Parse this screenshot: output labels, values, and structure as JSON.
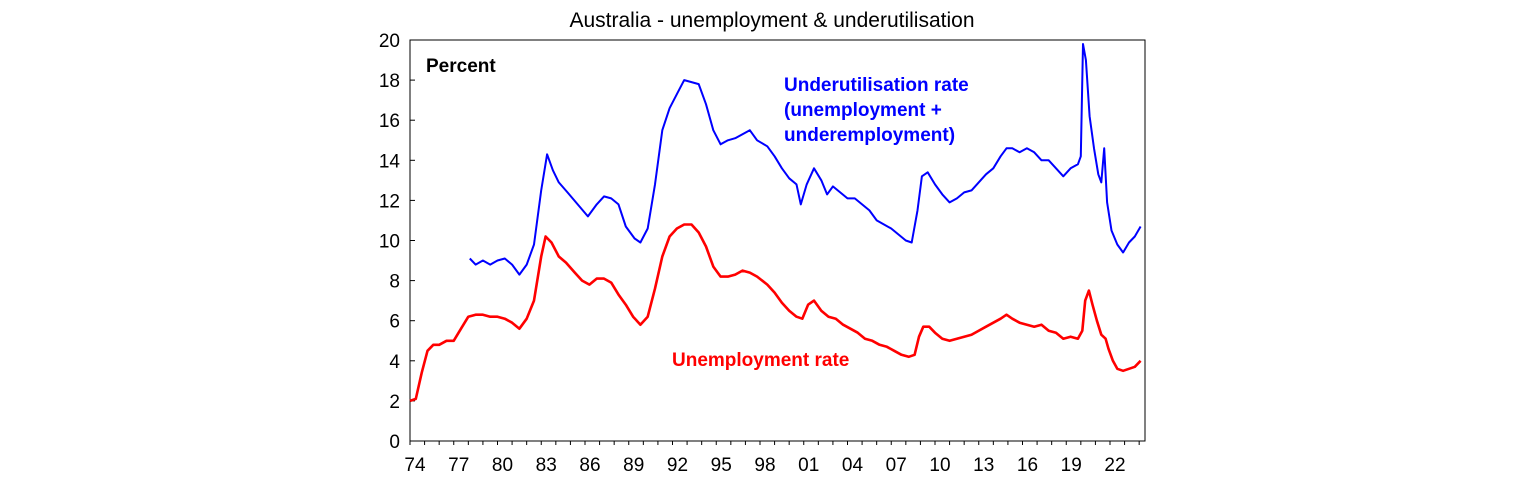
{
  "chart_data": {
    "type": "line",
    "title": "Australia - unemployment & underutilisation",
    "ylabel": "Percent",
    "xlabel": "",
    "ylim": [
      0,
      20
    ],
    "xlim": [
      1974,
      2024.4
    ],
    "yticks": [
      0,
      2,
      4,
      6,
      8,
      10,
      12,
      14,
      16,
      18,
      20
    ],
    "xtick_labels": [
      "74",
      "77",
      "80",
      "83",
      "86",
      "89",
      "92",
      "95",
      "98",
      "01",
      "04",
      "07",
      "10",
      "13",
      "16",
      "19",
      "22"
    ],
    "xtick_years": [
      1974,
      1977,
      1980,
      1983,
      1986,
      1989,
      1992,
      1995,
      1998,
      2001,
      2004,
      2007,
      2010,
      2013,
      2016,
      2019,
      2022
    ],
    "grid": false,
    "legend": "inline annotations",
    "series": [
      {
        "name": "Underutilisation rate (unemployment + underemployment)",
        "color": "#0000ff",
        "annotation_lines": [
          "Underutilisation rate",
          "(unemployment +",
          "underemployment)"
        ],
        "points": [
          [
            1978.1,
            9.1
          ],
          [
            1978.5,
            8.8
          ],
          [
            1979.0,
            9.0
          ],
          [
            1979.5,
            8.8
          ],
          [
            1980.0,
            9.0
          ],
          [
            1980.5,
            9.1
          ],
          [
            1981.0,
            8.8
          ],
          [
            1981.5,
            8.3
          ],
          [
            1982.0,
            8.8
          ],
          [
            1982.5,
            9.8
          ],
          [
            1983.0,
            12.5
          ],
          [
            1983.4,
            14.3
          ],
          [
            1983.8,
            13.5
          ],
          [
            1984.2,
            12.9
          ],
          [
            1984.8,
            12.4
          ],
          [
            1985.5,
            11.8
          ],
          [
            1986.2,
            11.2
          ],
          [
            1986.8,
            11.8
          ],
          [
            1987.3,
            12.2
          ],
          [
            1987.8,
            12.1
          ],
          [
            1988.3,
            11.8
          ],
          [
            1988.8,
            10.7
          ],
          [
            1989.4,
            10.1
          ],
          [
            1989.8,
            9.9
          ],
          [
            1990.3,
            10.6
          ],
          [
            1990.8,
            12.8
          ],
          [
            1991.3,
            15.5
          ],
          [
            1991.8,
            16.6
          ],
          [
            1992.3,
            17.3
          ],
          [
            1992.8,
            18.0
          ],
          [
            1993.3,
            17.9
          ],
          [
            1993.8,
            17.8
          ],
          [
            1994.3,
            16.8
          ],
          [
            1994.8,
            15.5
          ],
          [
            1995.3,
            14.8
          ],
          [
            1995.8,
            15.0
          ],
          [
            1996.3,
            15.1
          ],
          [
            1996.8,
            15.3
          ],
          [
            1997.3,
            15.5
          ],
          [
            1997.8,
            15.0
          ],
          [
            1998.5,
            14.7
          ],
          [
            1999.0,
            14.2
          ],
          [
            1999.5,
            13.6
          ],
          [
            2000.0,
            13.1
          ],
          [
            2000.5,
            12.8
          ],
          [
            2000.8,
            11.8
          ],
          [
            2001.2,
            12.8
          ],
          [
            2001.7,
            13.6
          ],
          [
            2002.2,
            13.0
          ],
          [
            2002.6,
            12.3
          ],
          [
            2003.0,
            12.7
          ],
          [
            2003.5,
            12.4
          ],
          [
            2004.0,
            12.1
          ],
          [
            2004.5,
            12.1
          ],
          [
            2005.0,
            11.8
          ],
          [
            2005.5,
            11.5
          ],
          [
            2006.0,
            11.0
          ],
          [
            2006.5,
            10.8
          ],
          [
            2007.0,
            10.6
          ],
          [
            2007.5,
            10.3
          ],
          [
            2008.0,
            10.0
          ],
          [
            2008.4,
            9.9
          ],
          [
            2008.8,
            11.5
          ],
          [
            2009.1,
            13.2
          ],
          [
            2009.5,
            13.4
          ],
          [
            2010.0,
            12.8
          ],
          [
            2010.5,
            12.3
          ],
          [
            2011.0,
            11.9
          ],
          [
            2011.5,
            12.1
          ],
          [
            2012.0,
            12.4
          ],
          [
            2012.5,
            12.5
          ],
          [
            2013.0,
            12.9
          ],
          [
            2013.5,
            13.3
          ],
          [
            2014.0,
            13.6
          ],
          [
            2014.5,
            14.2
          ],
          [
            2014.9,
            14.6
          ],
          [
            2015.3,
            14.6
          ],
          [
            2015.8,
            14.4
          ],
          [
            2016.3,
            14.6
          ],
          [
            2016.8,
            14.4
          ],
          [
            2017.3,
            14.0
          ],
          [
            2017.8,
            14.0
          ],
          [
            2018.3,
            13.6
          ],
          [
            2018.8,
            13.2
          ],
          [
            2019.3,
            13.6
          ],
          [
            2019.8,
            13.8
          ],
          [
            2020.0,
            14.2
          ],
          [
            2020.15,
            19.8
          ],
          [
            2020.35,
            19.0
          ],
          [
            2020.6,
            16.2
          ],
          [
            2020.9,
            14.6
          ],
          [
            2021.2,
            13.3
          ],
          [
            2021.4,
            12.9
          ],
          [
            2021.6,
            14.6
          ],
          [
            2021.8,
            11.9
          ],
          [
            2022.1,
            10.5
          ],
          [
            2022.5,
            9.8
          ],
          [
            2022.9,
            9.4
          ],
          [
            2023.3,
            9.9
          ],
          [
            2023.7,
            10.2
          ],
          [
            2024.1,
            10.7
          ]
        ]
      },
      {
        "name": "Unemployment rate",
        "color": "#ff0000",
        "annotation_lines": [
          "Unemployment rate"
        ],
        "points": [
          [
            1974.0,
            2.0
          ],
          [
            1974.4,
            2.1
          ],
          [
            1974.8,
            3.4
          ],
          [
            1975.2,
            4.5
          ],
          [
            1975.6,
            4.8
          ],
          [
            1976.0,
            4.8
          ],
          [
            1976.5,
            5.0
          ],
          [
            1977.0,
            5.0
          ],
          [
            1977.5,
            5.6
          ],
          [
            1978.0,
            6.2
          ],
          [
            1978.5,
            6.3
          ],
          [
            1979.0,
            6.3
          ],
          [
            1979.5,
            6.2
          ],
          [
            1980.0,
            6.2
          ],
          [
            1980.5,
            6.1
          ],
          [
            1981.0,
            5.9
          ],
          [
            1981.5,
            5.6
          ],
          [
            1982.0,
            6.1
          ],
          [
            1982.5,
            7.0
          ],
          [
            1983.0,
            9.2
          ],
          [
            1983.3,
            10.2
          ],
          [
            1983.7,
            9.9
          ],
          [
            1984.2,
            9.2
          ],
          [
            1984.7,
            8.9
          ],
          [
            1985.3,
            8.4
          ],
          [
            1985.8,
            8.0
          ],
          [
            1986.3,
            7.8
          ],
          [
            1986.8,
            8.1
          ],
          [
            1987.3,
            8.1
          ],
          [
            1987.8,
            7.9
          ],
          [
            1988.3,
            7.3
          ],
          [
            1988.8,
            6.8
          ],
          [
            1989.3,
            6.2
          ],
          [
            1989.8,
            5.8
          ],
          [
            1990.3,
            6.2
          ],
          [
            1990.8,
            7.6
          ],
          [
            1991.3,
            9.2
          ],
          [
            1991.8,
            10.2
          ],
          [
            1992.3,
            10.6
          ],
          [
            1992.8,
            10.8
          ],
          [
            1993.3,
            10.8
          ],
          [
            1993.8,
            10.4
          ],
          [
            1994.3,
            9.7
          ],
          [
            1994.8,
            8.7
          ],
          [
            1995.3,
            8.2
          ],
          [
            1995.8,
            8.2
          ],
          [
            1996.3,
            8.3
          ],
          [
            1996.8,
            8.5
          ],
          [
            1997.3,
            8.4
          ],
          [
            1997.8,
            8.2
          ],
          [
            1998.5,
            7.8
          ],
          [
            1999.0,
            7.4
          ],
          [
            1999.5,
            6.9
          ],
          [
            2000.0,
            6.5
          ],
          [
            2000.5,
            6.2
          ],
          [
            2000.9,
            6.1
          ],
          [
            2001.3,
            6.8
          ],
          [
            2001.7,
            7.0
          ],
          [
            2002.2,
            6.5
          ],
          [
            2002.7,
            6.2
          ],
          [
            2003.2,
            6.1
          ],
          [
            2003.7,
            5.8
          ],
          [
            2004.2,
            5.6
          ],
          [
            2004.7,
            5.4
          ],
          [
            2005.2,
            5.1
          ],
          [
            2005.7,
            5.0
          ],
          [
            2006.2,
            4.8
          ],
          [
            2006.7,
            4.7
          ],
          [
            2007.2,
            4.5
          ],
          [
            2007.7,
            4.3
          ],
          [
            2008.2,
            4.2
          ],
          [
            2008.6,
            4.3
          ],
          [
            2008.9,
            5.2
          ],
          [
            2009.2,
            5.7
          ],
          [
            2009.6,
            5.7
          ],
          [
            2010.0,
            5.4
          ],
          [
            2010.5,
            5.1
          ],
          [
            2011.0,
            5.0
          ],
          [
            2011.5,
            5.1
          ],
          [
            2012.0,
            5.2
          ],
          [
            2012.5,
            5.3
          ],
          [
            2013.0,
            5.5
          ],
          [
            2013.5,
            5.7
          ],
          [
            2014.0,
            5.9
          ],
          [
            2014.5,
            6.1
          ],
          [
            2014.9,
            6.3
          ],
          [
            2015.3,
            6.1
          ],
          [
            2015.8,
            5.9
          ],
          [
            2016.3,
            5.8
          ],
          [
            2016.8,
            5.7
          ],
          [
            2017.3,
            5.8
          ],
          [
            2017.8,
            5.5
          ],
          [
            2018.3,
            5.4
          ],
          [
            2018.8,
            5.1
          ],
          [
            2019.3,
            5.2
          ],
          [
            2019.8,
            5.1
          ],
          [
            2020.1,
            5.5
          ],
          [
            2020.3,
            7.0
          ],
          [
            2020.55,
            7.5
          ],
          [
            2020.8,
            6.8
          ],
          [
            2021.1,
            6.0
          ],
          [
            2021.4,
            5.3
          ],
          [
            2021.7,
            5.1
          ],
          [
            2021.9,
            4.6
          ],
          [
            2022.2,
            4.0
          ],
          [
            2022.5,
            3.6
          ],
          [
            2022.9,
            3.5
          ],
          [
            2023.3,
            3.6
          ],
          [
            2023.7,
            3.7
          ],
          [
            2024.1,
            4.0
          ]
        ]
      }
    ]
  }
}
